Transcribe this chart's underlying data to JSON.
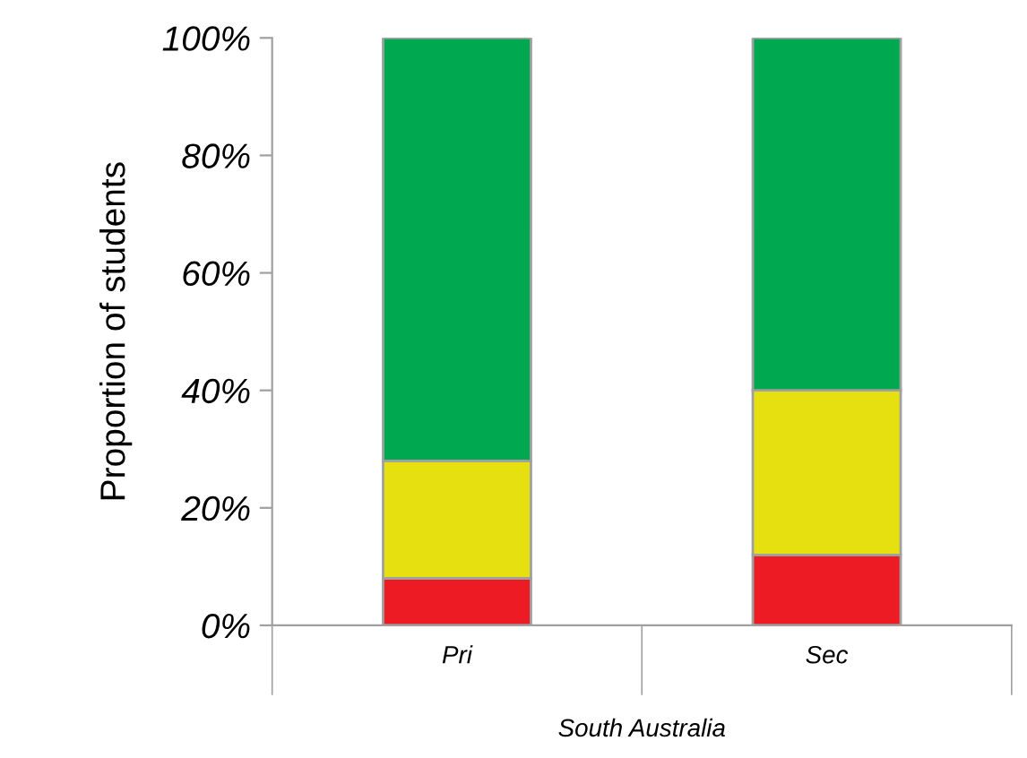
{
  "chart_data": {
    "type": "bar",
    "stacked": true,
    "ylabel": "Proportion of students",
    "xlabel": "South Australia",
    "categories": [
      "Pri",
      "Sec"
    ],
    "series": [
      {
        "color": "#ed1c24",
        "values": [
          8,
          12
        ]
      },
      {
        "color": "#e6e010",
        "values": [
          20,
          28
        ]
      },
      {
        "color": "#00a84f",
        "values": [
          72,
          60
        ]
      }
    ],
    "ylim": [
      0,
      100
    ],
    "yticks": [
      {
        "value": 0,
        "label": "0%"
      },
      {
        "value": 20,
        "label": "20%"
      },
      {
        "value": 40,
        "label": "40%"
      },
      {
        "value": 60,
        "label": "60%"
      },
      {
        "value": 80,
        "label": "80%"
      },
      {
        "value": 100,
        "label": "100%"
      }
    ],
    "grid": false,
    "legend": false
  }
}
